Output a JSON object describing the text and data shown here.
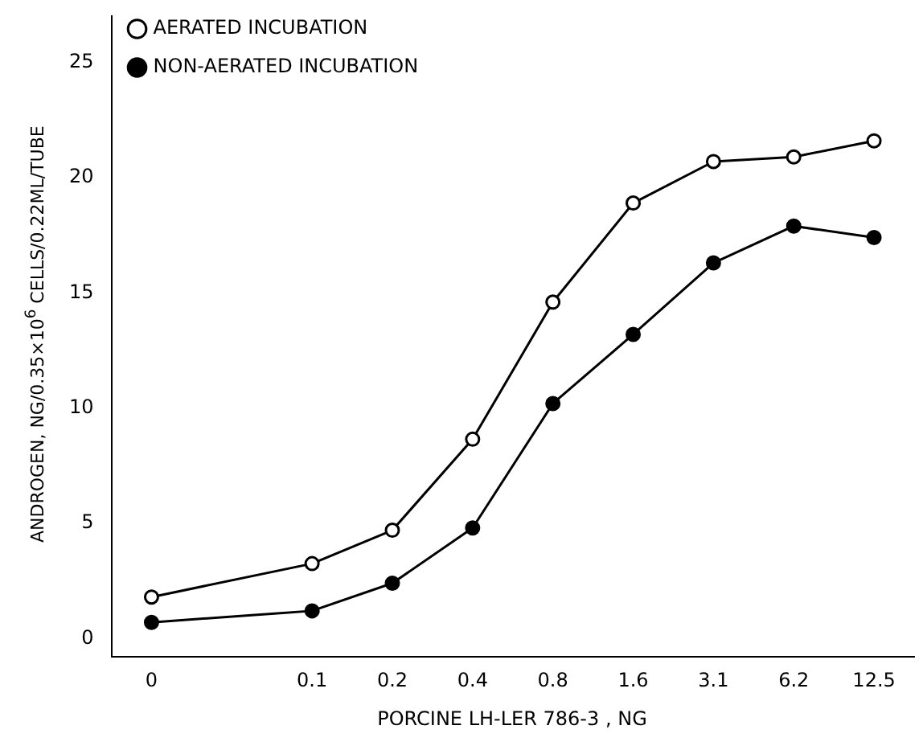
{
  "chart_data": {
    "type": "line",
    "xlabel": "PORCINE LH-LER 786-3 , NG",
    "ylabel": "ANDROGEN, NG/0.35×10$^{6}$ CELLS/0.22ML/TUBE",
    "categories": [
      "0",
      null,
      "0.1",
      "0.2",
      "0.4",
      "0.8",
      "1.6",
      "3.1",
      "6.2",
      "12.5"
    ],
    "series": [
      {
        "name": "AERATED INCUBATION",
        "color": "#000000",
        "values": [
          1.8,
          null,
          3.25,
          4.7,
          8.65,
          14.6,
          18.9,
          20.7,
          20.9,
          21.6
        ]
      },
      {
        "name": "NON-AERATED INCUBATION",
        "color": "#000000",
        "values": [
          0.7,
          null,
          1.2,
          2.4,
          4.8,
          10.2,
          13.2,
          16.3,
          17.9,
          17.4
        ]
      }
    ],
    "ylim": [
      -0.8,
      27
    ],
    "yticks": [
      0,
      5,
      10,
      15,
      20,
      25
    ],
    "grid": false,
    "legend": "top left",
    "marker": "circle",
    "line_style": "solid"
  }
}
